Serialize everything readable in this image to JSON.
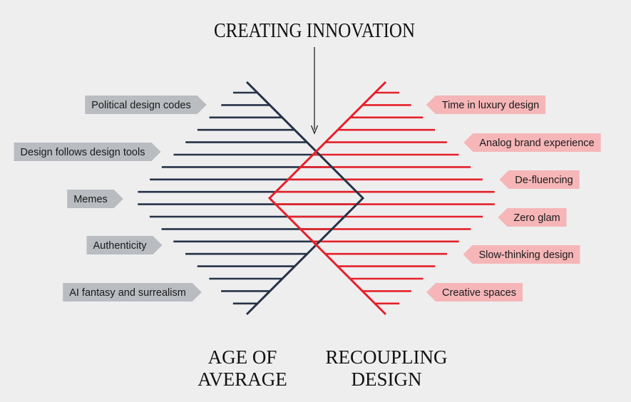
{
  "title": "CREATING INNOVATION",
  "left": {
    "heading": [
      "AGE OF",
      "AVERAGE"
    ],
    "color": "#263248",
    "label_color": "#b9bcc1",
    "labels": [
      "Political design codes",
      "Design follows design tools",
      "Memes",
      "Authenticity",
      "AI fantasy and surrealism"
    ]
  },
  "right": {
    "heading": [
      "RECOUPLING",
      "DESIGN"
    ],
    "color": "#e5212a",
    "label_color": "#f6b6b8",
    "labels": [
      "Time in luxury design",
      "Analog brand experience",
      "De-fluencing",
      "Zero glam",
      "Slow-thinking design",
      "Creative spaces"
    ]
  },
  "colors": {
    "background": "#eeeeef",
    "arrow": "#222222"
  }
}
